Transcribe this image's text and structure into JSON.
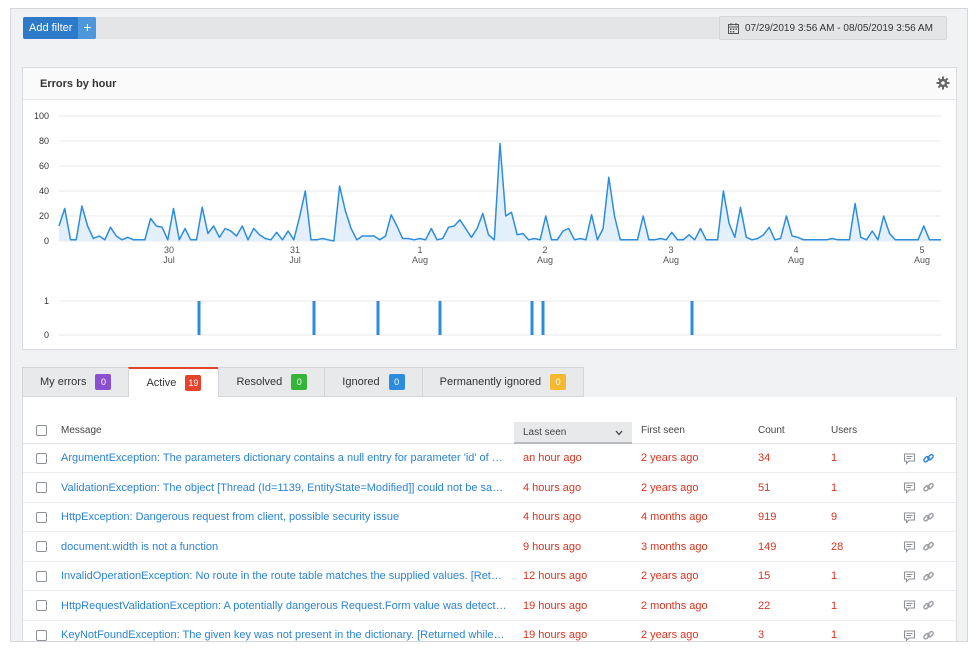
{
  "filter": {
    "add_label": "Add filter",
    "plus": "+"
  },
  "date_range": "07/29/2019 3:56 AM - 08/05/2019 3:56 AM",
  "chart_panel": {
    "title": "Errors by hour"
  },
  "chart_data": [
    {
      "type": "area",
      "ylim": [
        0,
        100
      ],
      "yticks": [
        "100",
        "80",
        "60",
        "40",
        "20",
        "0"
      ],
      "xticks": [
        {
          "day": "30",
          "month": "Jul"
        },
        {
          "day": "31",
          "month": "Jul"
        },
        {
          "day": "1",
          "month": "Aug"
        },
        {
          "day": "2",
          "month": "Aug"
        },
        {
          "day": "3",
          "month": "Aug"
        },
        {
          "day": "4",
          "month": "Aug"
        },
        {
          "day": "5",
          "month": "Aug"
        }
      ],
      "color": "#2d8ddc",
      "values": [
        12,
        26,
        1,
        1,
        28,
        12,
        2,
        4,
        1,
        11,
        4,
        1,
        3,
        1,
        1,
        1,
        18,
        12,
        11,
        1,
        26,
        1,
        10,
        1,
        1,
        27,
        6,
        12,
        3,
        10,
        8,
        4,
        12,
        1,
        10,
        5,
        2,
        1,
        7,
        1,
        8,
        1,
        19,
        40,
        1,
        1,
        2,
        1,
        0,
        44,
        24,
        10,
        1,
        4,
        4,
        4,
        1,
        4,
        21,
        12,
        2,
        2,
        1,
        2,
        1,
        10,
        1,
        2,
        11,
        12,
        17,
        10,
        3,
        10,
        22,
        5,
        1,
        78,
        20,
        23,
        5,
        6,
        1,
        2,
        1,
        20,
        1,
        1,
        8,
        10,
        1,
        2,
        1,
        21,
        1,
        10,
        51,
        20,
        1,
        1,
        1,
        1,
        20,
        1,
        1,
        2,
        1,
        7,
        1,
        1,
        5,
        1,
        10,
        1,
        1,
        1,
        40,
        14,
        3,
        27,
        3,
        1,
        2,
        5,
        11,
        1,
        2,
        20,
        4,
        3,
        1,
        1,
        1,
        1,
        1,
        2,
        1,
        1,
        1,
        30,
        3,
        1,
        8,
        1,
        20,
        6,
        1,
        1,
        1,
        1,
        1,
        12,
        1,
        1,
        1
      ],
      "xstart": 2,
      "xend": 940
    },
    {
      "type": "bar",
      "ylim": [
        0,
        1
      ],
      "yticks": [
        "1",
        "0"
      ],
      "color": "#2d8ddc",
      "events": [
        188,
        303,
        367,
        429,
        521,
        532,
        681
      ]
    }
  ],
  "tabs": [
    {
      "label": "My errors",
      "count": "0",
      "color": "#8c4fcf",
      "active": false
    },
    {
      "label": "Active",
      "count": "19",
      "color": "#e6432c",
      "active": true
    },
    {
      "label": "Resolved",
      "count": "0",
      "color": "#34b53a",
      "active": false
    },
    {
      "label": "Ignored",
      "count": "0",
      "color": "#2d8ddc",
      "active": false
    },
    {
      "label": "Permanently ignored",
      "count": "0",
      "color": "#f5b82e",
      "active": false
    }
  ],
  "table": {
    "columns": {
      "message": "Message",
      "last_seen": "Last seen",
      "first_seen": "First seen",
      "count": "Count",
      "users": "Users"
    },
    "rows": [
      {
        "message": "ArgumentException: The parameters dictionary contains a null entry for parameter 'id' of n...",
        "last_seen": "an hour ago",
        "first_seen": "2 years ago",
        "count": "34",
        "users": "1",
        "linked": true
      },
      {
        "message": "ValidationException: The object [Thread (Id=1139, EntityState=Modified]] could not be save...",
        "last_seen": "4 hours ago",
        "first_seen": "2 years ago",
        "count": "51",
        "users": "1",
        "linked": false
      },
      {
        "message": "HttpException: Dangerous request from client, possible security issue",
        "last_seen": "4 hours ago",
        "first_seen": "4 months ago",
        "count": "919",
        "users": "9",
        "linked": false
      },
      {
        "message": "document.width is not a function",
        "last_seen": "9 hours ago",
        "first_seen": "3 months ago",
        "count": "149",
        "users": "28",
        "linked": false
      },
      {
        "message": "InvalidOperationException: No route in the route table matches the supplied values. [Retur...",
        "last_seen": "12 hours ago",
        "first_seen": "2 years ago",
        "count": "15",
        "users": "1",
        "linked": false
      },
      {
        "message": "HttpRequestValidationException: A potentially dangerous Request.Form value was detecte...",
        "last_seen": "19 hours ago",
        "first_seen": "2 months ago",
        "count": "22",
        "users": "1",
        "linked": false
      },
      {
        "message": "KeyNotFoundException: The given key was not present in the dictionary. [Returned while h...",
        "last_seen": "19 hours ago",
        "first_seen": "2 years ago",
        "count": "3",
        "users": "1",
        "linked": false
      }
    ]
  }
}
